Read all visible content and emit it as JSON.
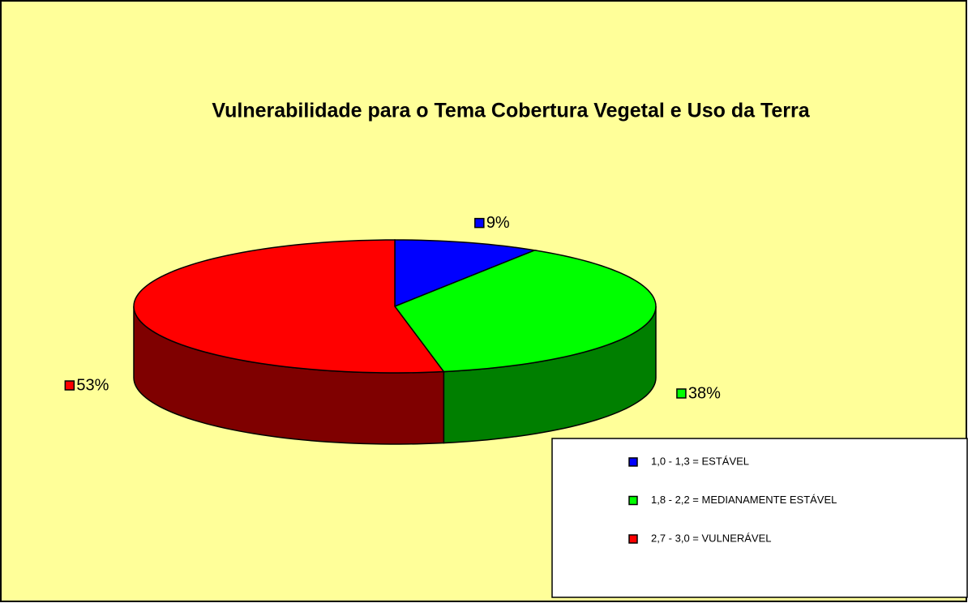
{
  "chart_data": {
    "type": "pie",
    "title": "Vulnerabilidade para o Tema Cobertura Vegetal e Uso da Terra",
    "categories": [
      "1,0 - 1,3 = ESTÁVEL",
      "1,8 - 2,2 = MEDIANAMENTE ESTÁVEL",
      "2,7 - 3,0 = VULNERÁVEL"
    ],
    "values": [
      9,
      38,
      53
    ],
    "value_labels": [
      "9%",
      "38%",
      "53%"
    ],
    "colors": [
      "#0000ff",
      "#00ff00",
      "#ff0000"
    ],
    "legend": "bottom-right"
  }
}
